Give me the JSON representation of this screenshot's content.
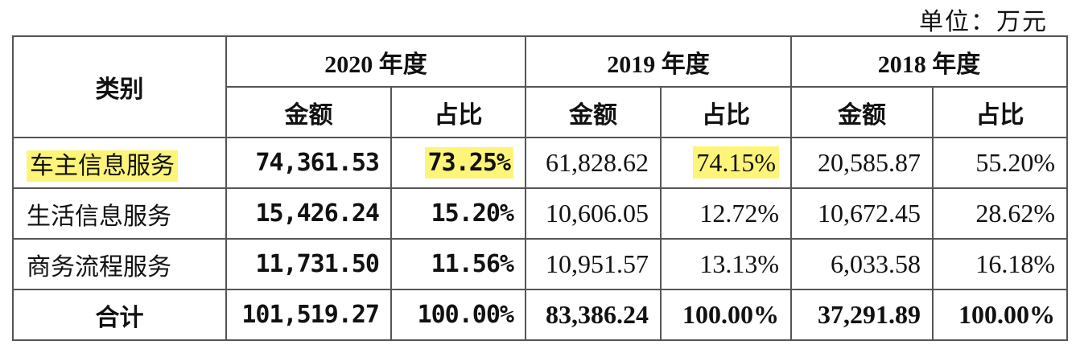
{
  "unit_label": "单位：万元",
  "table": {
    "header": {
      "category": "类别",
      "years": [
        "2020 年度",
        "2019 年度",
        "2018 年度"
      ],
      "sub": [
        "金额",
        "占比",
        "金额",
        "占比",
        "金额",
        "占比"
      ]
    },
    "rows": [
      {
        "label": "车主信息服务",
        "cells": [
          "74,361.53",
          "73.25%",
          "61,828.62",
          "74.15%",
          "20,585.87",
          "55.20%"
        ],
        "highlight": true
      },
      {
        "label": "生活信息服务",
        "cells": [
          "15,426.24",
          "15.20%",
          "10,606.05",
          "12.72%",
          "10,672.45",
          "28.62%"
        ]
      },
      {
        "label": "商务流程服务",
        "cells": [
          "11,731.50",
          "11.56%",
          "10,951.57",
          "13.13%",
          "6,033.58",
          "16.18%"
        ]
      }
    ],
    "total": {
      "label": "合计",
      "cells": [
        "101,519.27",
        "100.00%",
        "83,386.24",
        "100.00%",
        "37,291.89",
        "100.00%"
      ]
    }
  },
  "colors": {
    "highlight": "#fdf57a",
    "border": "#555555"
  }
}
